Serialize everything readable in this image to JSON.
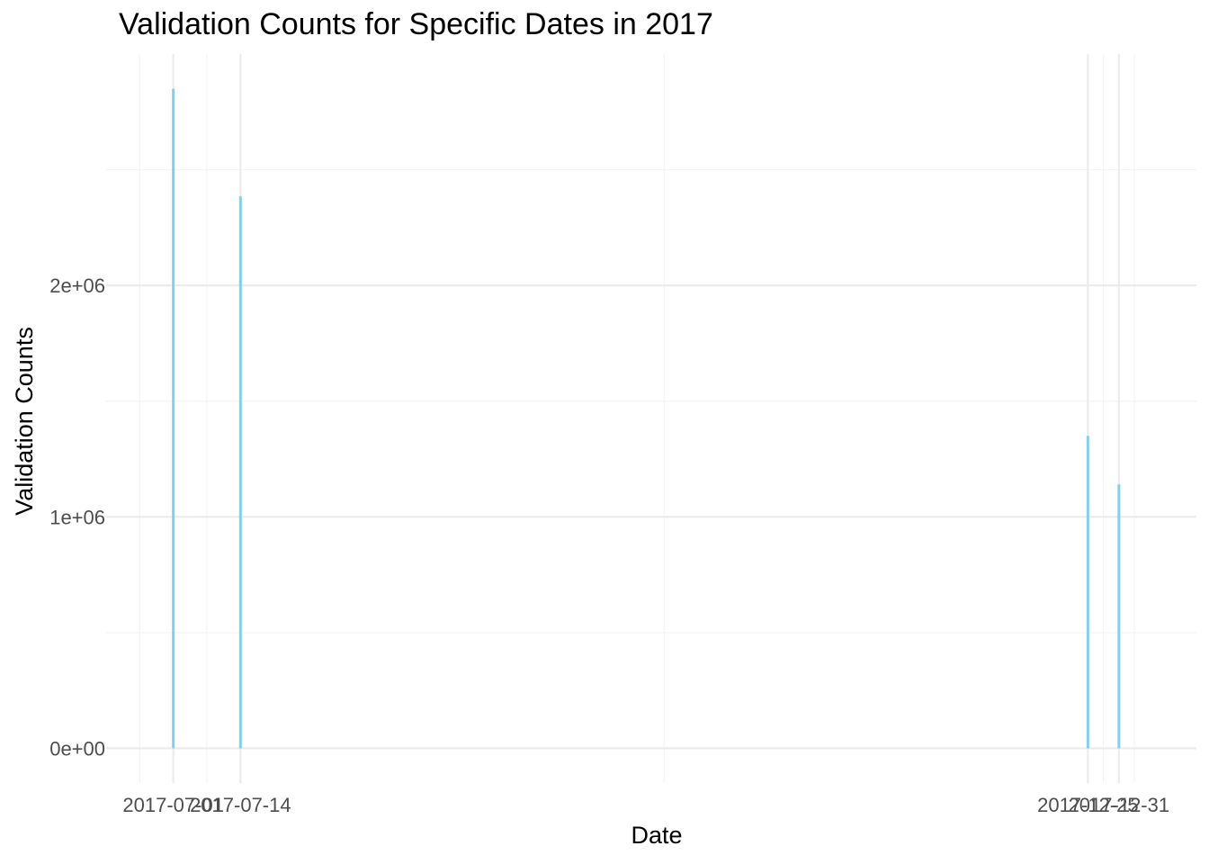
{
  "chart_data": {
    "type": "bar",
    "title": "Validation Counts for Specific Dates in 2017",
    "xlabel": "Date",
    "ylabel": "Validation Counts",
    "x": [
      "2017-07-01",
      "2017-07-14",
      "2017-12-25",
      "2017-12-31"
    ],
    "values": [
      2850000,
      2385000,
      1350000,
      1140000
    ],
    "x_ticks": [
      "2017-07-01",
      "2017-07-14",
      "2017-12-25",
      "2017-12-31"
    ],
    "y_ticks": [
      {
        "value": 0,
        "label": "0e+00"
      },
      {
        "value": 1000000,
        "label": "1e+06"
      },
      {
        "value": 2000000,
        "label": "2e+06"
      }
    ],
    "ylim": [
      -150000,
      3000000
    ],
    "xlim": [
      "2017-06-18",
      "2018-01-15"
    ],
    "grid": true,
    "colors": {
      "bar": "#87CEEB",
      "grid_major": "#EBEBEB",
      "grid_minor": "#F3F3F3",
      "tick_text": "#4D4D4D",
      "title_text": "#000000"
    }
  }
}
